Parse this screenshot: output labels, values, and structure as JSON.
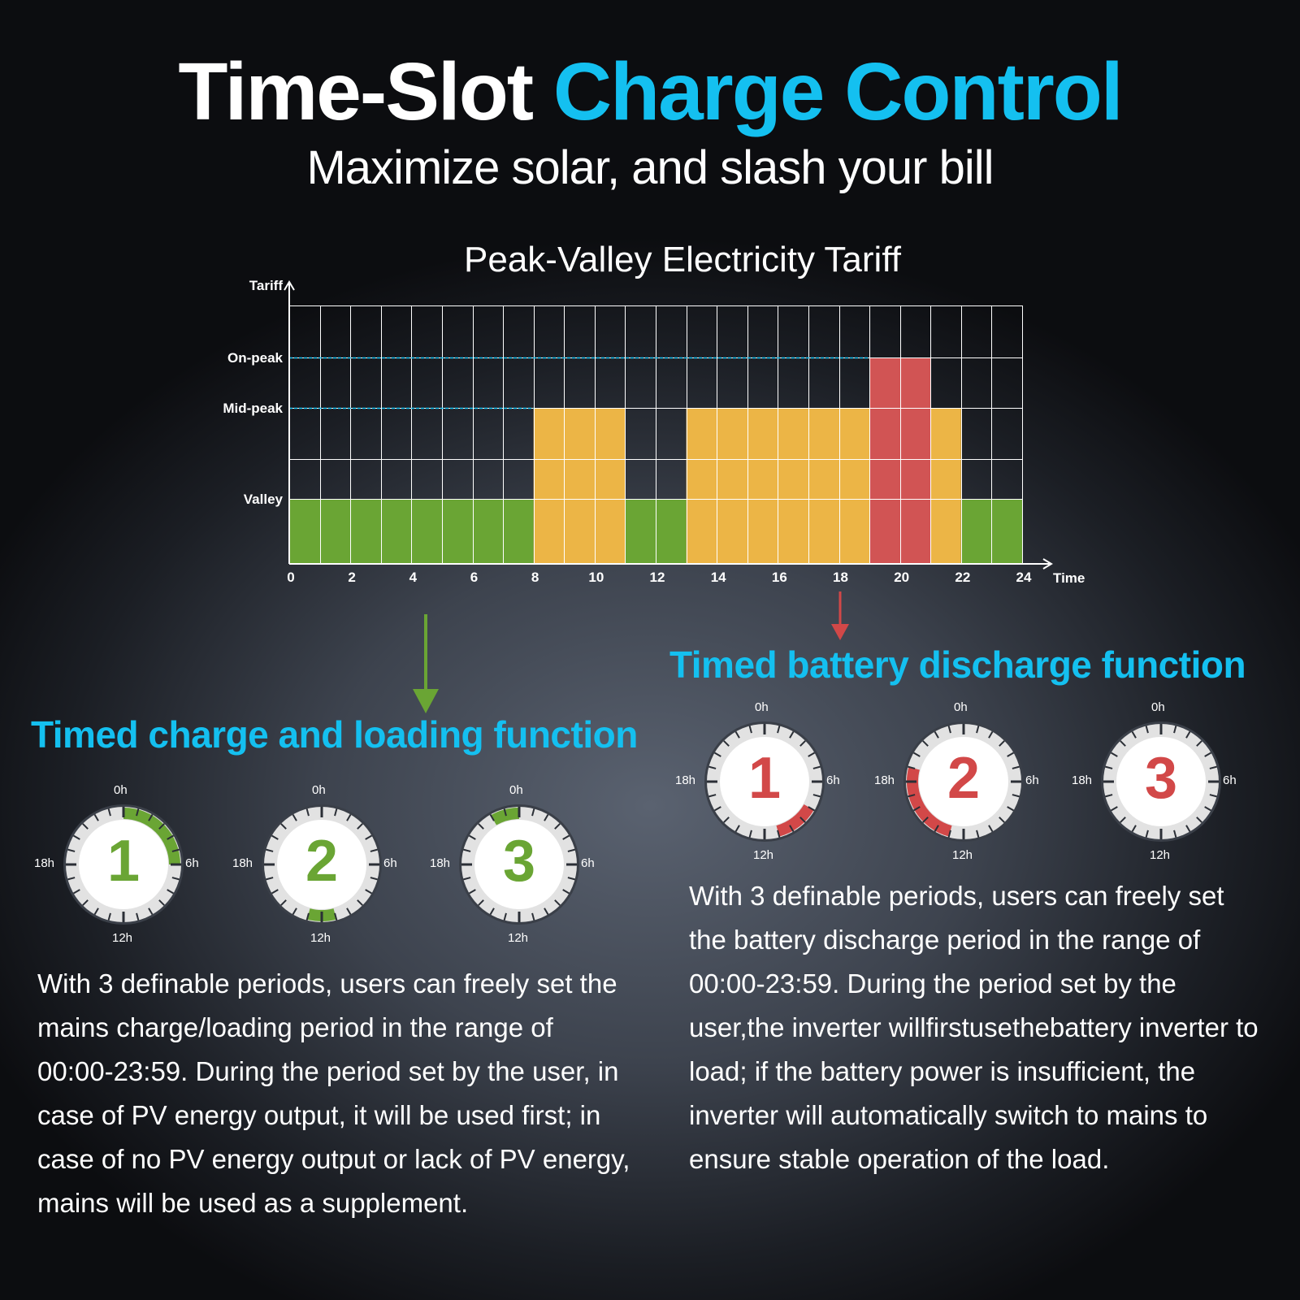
{
  "header": {
    "title_white": "Time-Slot",
    "title_blue": "Charge Control",
    "subtitle": "Maximize solar, and slash your bill"
  },
  "chart_data": {
    "type": "bar",
    "title": "Peak-Valley Electricity Tariff",
    "ylabel": "Tariff",
    "xlabel": "Time",
    "x_ticks": [
      "0",
      "2",
      "4",
      "6",
      "8",
      "10",
      "12",
      "14",
      "16",
      "18",
      "20",
      "22",
      "24"
    ],
    "xlim": [
      0,
      24
    ],
    "y_levels": [
      "Valley",
      "Mid-peak",
      "On-peak"
    ],
    "grid": true,
    "segments": [
      {
        "start": 0,
        "end": 8,
        "level": "Valley",
        "color": "#6aa534"
      },
      {
        "start": 8,
        "end": 11,
        "level": "Mid-peak",
        "color": "#ecb546"
      },
      {
        "start": 11,
        "end": 13,
        "level": "Valley",
        "color": "#6aa534"
      },
      {
        "start": 13,
        "end": 19,
        "level": "Mid-peak",
        "color": "#ecb546"
      },
      {
        "start": 19,
        "end": 21,
        "level": "On-peak",
        "color": "#d15454"
      },
      {
        "start": 21,
        "end": 22,
        "level": "Mid-peak",
        "color": "#ecb546"
      },
      {
        "start": 22,
        "end": 24,
        "level": "Valley",
        "color": "#6aa534"
      }
    ]
  },
  "charge_section": {
    "heading": "Timed charge and loading function",
    "color": "#6aa534",
    "dials": [
      {
        "number": "1",
        "highlight_hours": [
          0,
          6
        ]
      },
      {
        "number": "2",
        "highlight_hours": [
          11,
          13
        ]
      },
      {
        "number": "3",
        "highlight_hours": [
          22,
          24
        ]
      }
    ],
    "paragraph": "With 3 definable periods, users can freely set the mains charge/loading period in the range of 00:00-23:59. During the period set by the user, in case of PV energy output, it will be used first; in case of no PV energy output or lack of PV energy, mains will be used as a supplement."
  },
  "discharge_section": {
    "heading": "Timed battery discharge function",
    "color": "#d24848",
    "dials": [
      {
        "number": "1",
        "highlight_hours": [
          8,
          11
        ]
      },
      {
        "number": "2",
        "highlight_hours": [
          13,
          19
        ]
      },
      {
        "number": "3",
        "highlight_hours": []
      }
    ],
    "paragraph": "With 3 definable periods, users can freely set the battery discharge period in the range of 00:00-23:59. During the period set by the user,the inverter willfirstusethebattery inverter to load; if the battery power is insufficient, the inverter will automatically switch to mains to ensure stable operation of the load."
  },
  "dial_labels": {
    "top": "0h",
    "right": "6h",
    "bottom": "12h",
    "left": "18h"
  }
}
